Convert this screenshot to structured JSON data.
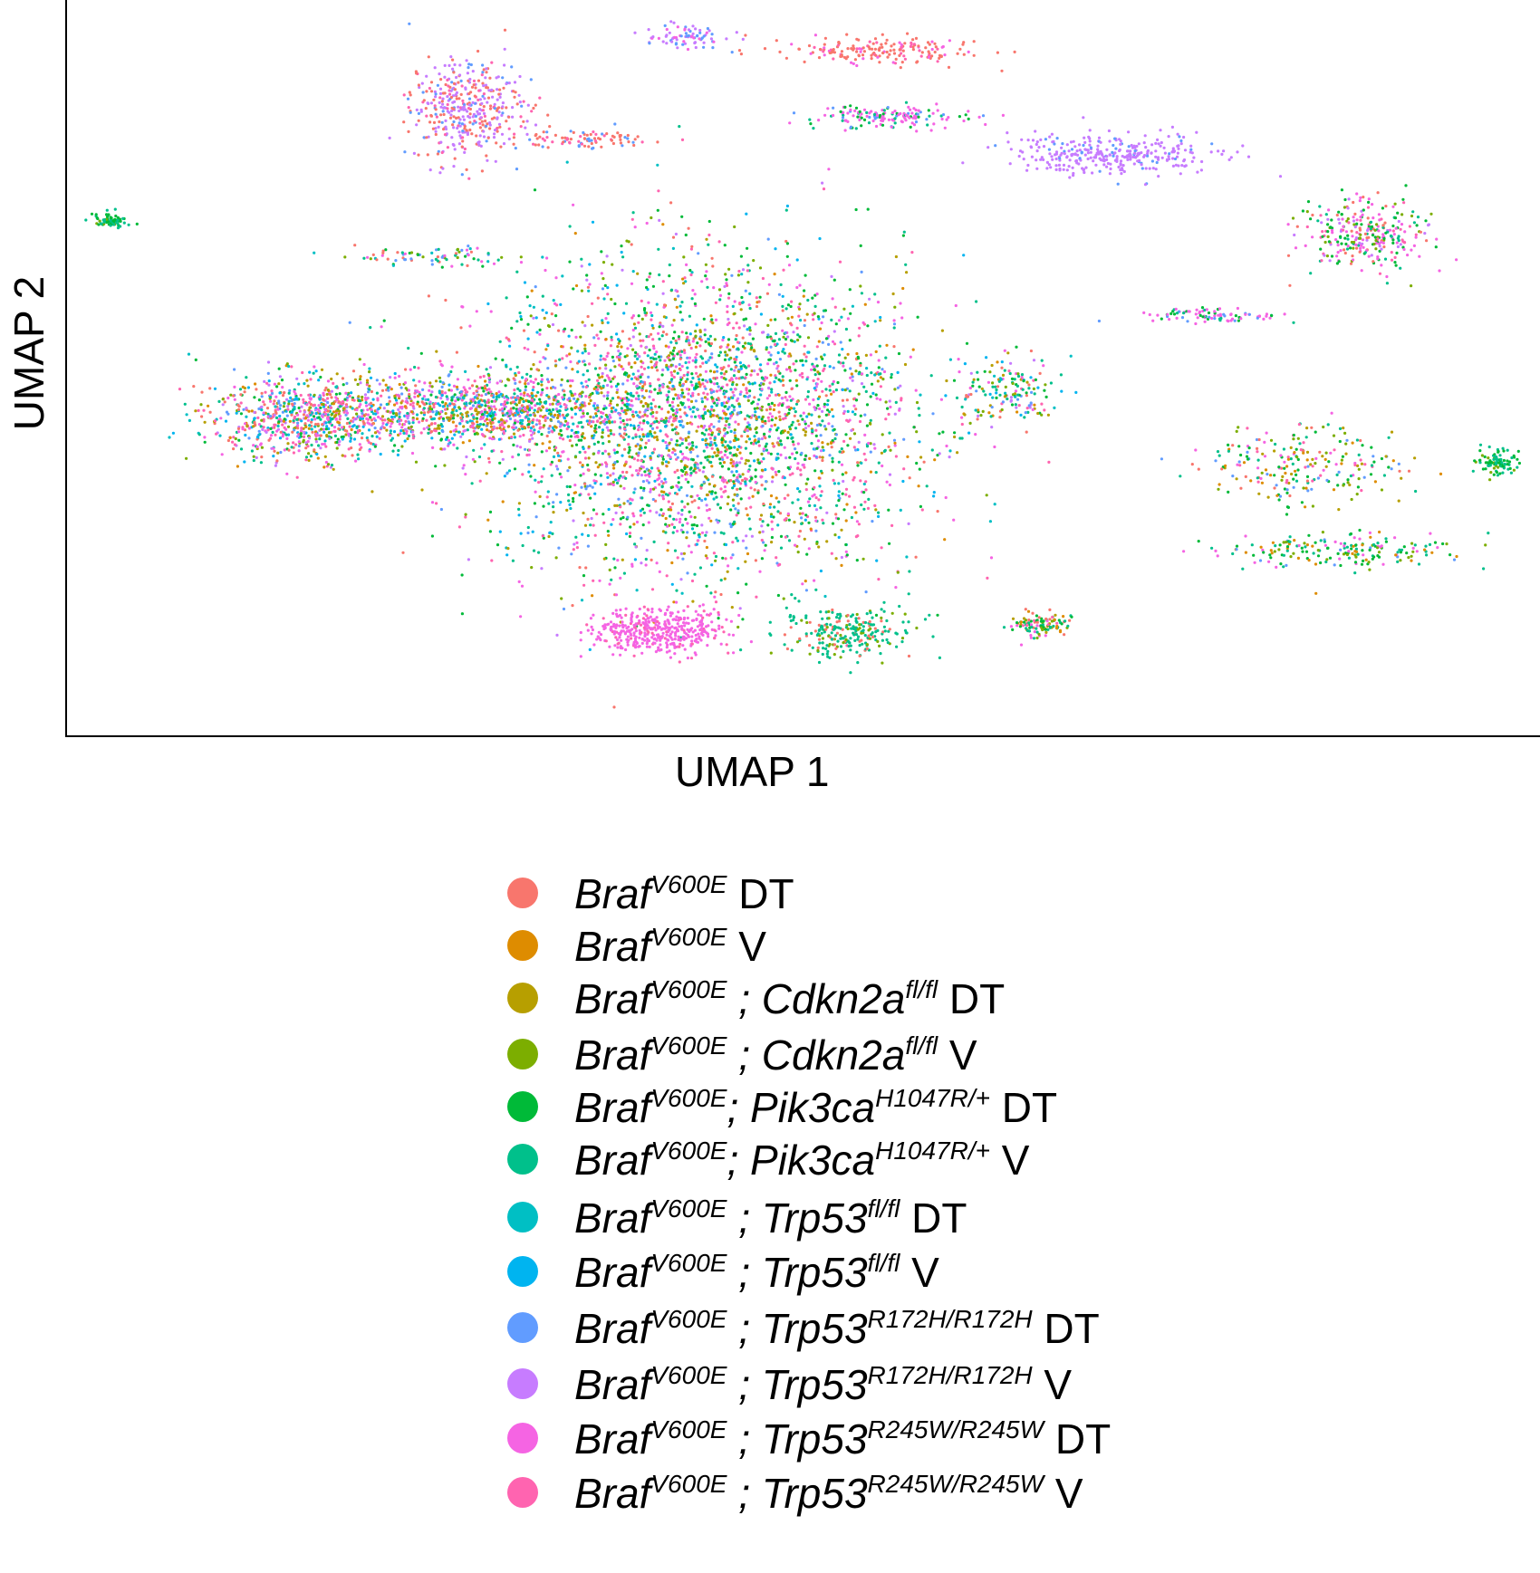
{
  "chart_data": {
    "type": "scatter",
    "title": "",
    "xlabel": "UMAP 1",
    "ylabel": "UMAP 2",
    "xlim": [
      0,
      100
    ],
    "ylim": [
      0,
      100
    ],
    "grid": false,
    "legend_position": "bottom",
    "series": [
      {
        "name": "BrafV600E DT",
        "color": "#F8766D",
        "parts": [
          {
            "t": "Braf",
            "i": true
          },
          {
            "t": "V600E",
            "sup": true
          },
          {
            "t": " DT"
          }
        ]
      },
      {
        "name": "BrafV600E V",
        "color": "#DE8C00",
        "parts": [
          {
            "t": "Braf",
            "i": true
          },
          {
            "t": "V600E",
            "sup": true
          },
          {
            "t": " V"
          }
        ]
      },
      {
        "name": "BrafV600E ; Cdkn2afl/fl DT",
        "color": "#B79F00",
        "parts": [
          {
            "t": "Braf",
            "i": true
          },
          {
            "t": "V600E",
            "sup": true
          },
          {
            "t": " ; Cdkn2a",
            "i": true
          },
          {
            "t": "fl/fl",
            "sup": true
          },
          {
            "t": " DT"
          }
        ]
      },
      {
        "name": "BrafV600E ; Cdkn2afl/fl V",
        "color": "#7CAE00",
        "parts": [
          {
            "t": "Braf",
            "i": true
          },
          {
            "t": "V600E",
            "sup": true
          },
          {
            "t": " ; Cdkn2a",
            "i": true
          },
          {
            "t": "fl/fl",
            "sup": true
          },
          {
            "t": " V"
          }
        ]
      },
      {
        "name": "BrafV600E; Pik3caH1047R/+ DT",
        "color": "#00BA38",
        "parts": [
          {
            "t": "Braf",
            "i": true
          },
          {
            "t": "V600E",
            "sup": true
          },
          {
            "t": "; Pik3ca",
            "i": true
          },
          {
            "t": "H1047R/+",
            "sup": true
          },
          {
            "t": " DT"
          }
        ]
      },
      {
        "name": "BrafV600E; Pik3caH1047R/+ V",
        "color": "#00C08B",
        "parts": [
          {
            "t": "Braf",
            "i": true
          },
          {
            "t": "V600E",
            "sup": true
          },
          {
            "t": "; Pik3ca",
            "i": true
          },
          {
            "t": "H1047R/+",
            "sup": true
          },
          {
            "t": " V"
          }
        ]
      },
      {
        "name": "BrafV600E ; Trp53fl/fl DT",
        "color": "#00BFC4",
        "parts": [
          {
            "t": "Braf",
            "i": true
          },
          {
            "t": "V600E",
            "sup": true
          },
          {
            "t": " ; Trp53",
            "i": true
          },
          {
            "t": "fl/fl",
            "sup": true
          },
          {
            "t": " DT"
          }
        ]
      },
      {
        "name": "BrafV600E ; Trp53fl/fl V",
        "color": "#00B4F0",
        "parts": [
          {
            "t": "Braf",
            "i": true
          },
          {
            "t": "V600E",
            "sup": true
          },
          {
            "t": " ; Trp53",
            "i": true
          },
          {
            "t": "fl/fl",
            "sup": true
          },
          {
            "t": " V"
          }
        ]
      },
      {
        "name": "BrafV600E ; Trp53R172H/R172H DT",
        "color": "#619CFF",
        "parts": [
          {
            "t": "Braf",
            "i": true
          },
          {
            "t": "V600E",
            "sup": true
          },
          {
            "t": " ; Trp53",
            "i": true
          },
          {
            "t": "R172H/R172H",
            "sup": true
          },
          {
            "t": " DT"
          }
        ]
      },
      {
        "name": "BrafV600E ; Trp53R172H/R172H V",
        "color": "#C77CFF",
        "parts": [
          {
            "t": "Braf",
            "i": true
          },
          {
            "t": "V600E",
            "sup": true
          },
          {
            "t": " ; Trp53",
            "i": true
          },
          {
            "t": "R172H/R172H",
            "sup": true
          },
          {
            "t": " V"
          }
        ]
      },
      {
        "name": "BrafV600E ; Trp53R245W/R245W DT",
        "color": "#F564E3",
        "parts": [
          {
            "t": "Braf",
            "i": true
          },
          {
            "t": "V600E",
            "sup": true
          },
          {
            "t": " ; Trp53",
            "i": true
          },
          {
            "t": "R245W/R245W",
            "sup": true
          },
          {
            "t": " DT"
          }
        ]
      },
      {
        "name": "BrafV600E ; Trp53R245W/R245W V",
        "color": "#FF64B0",
        "parts": [
          {
            "t": "Braf",
            "i": true
          },
          {
            "t": "V600E",
            "sup": true
          },
          {
            "t": " ; Trp53",
            "i": true
          },
          {
            "t": "R245W/R245W",
            "sup": true
          },
          {
            "t": " V"
          }
        ]
      }
    ],
    "clusters": [
      {
        "cx": 43,
        "cy": 43,
        "rx": 13,
        "ry": 19,
        "n": 3200,
        "w": [
          1,
          1,
          1,
          1,
          2,
          2,
          1,
          1,
          1,
          1,
          2,
          2
        ]
      },
      {
        "cx": 28,
        "cy": 44,
        "rx": 10,
        "ry": 4.5,
        "n": 1100,
        "w": [
          1,
          1,
          1,
          1,
          1,
          1,
          1,
          1,
          1,
          1,
          2,
          2
        ]
      },
      {
        "cx": 16,
        "cy": 43,
        "rx": 6,
        "ry": 5,
        "n": 700,
        "w": [
          2,
          1,
          1,
          1,
          1,
          1,
          1,
          1,
          1,
          1,
          2,
          2
        ]
      },
      {
        "cx": 40,
        "cy": 14,
        "rx": 4,
        "ry": 3,
        "n": 420,
        "w": [
          0,
          0,
          0,
          0,
          0,
          0,
          0,
          0,
          0,
          0,
          6,
          1
        ]
      },
      {
        "cx": 53,
        "cy": 14,
        "rx": 4,
        "ry": 3,
        "n": 260,
        "w": [
          1,
          0,
          0,
          1,
          0,
          4,
          0,
          0,
          0,
          0,
          0,
          0
        ]
      },
      {
        "cx": 27,
        "cy": 85,
        "rx": 3.5,
        "ry": 6,
        "n": 420,
        "w": [
          3,
          0,
          0,
          0,
          0,
          0,
          0,
          0,
          1,
          4,
          0,
          1
        ]
      },
      {
        "cx": 71,
        "cy": 79,
        "rx": 6.5,
        "ry": 2.4,
        "n": 330,
        "w": [
          0,
          0,
          0,
          0,
          0,
          0,
          0,
          0,
          1,
          8,
          0,
          0
        ]
      },
      {
        "cx": 88,
        "cy": 68,
        "rx": 4,
        "ry": 4.5,
        "n": 300,
        "w": [
          1,
          0,
          0,
          1,
          2,
          1,
          0,
          0,
          0,
          1,
          3,
          1
        ]
      },
      {
        "cx": 55,
        "cy": 93,
        "rx": 6,
        "ry": 1.6,
        "n": 180,
        "w": [
          4,
          0,
          0,
          0,
          0,
          0,
          0,
          0,
          0,
          0,
          1,
          1
        ]
      },
      {
        "cx": 56,
        "cy": 84,
        "rx": 5,
        "ry": 1.5,
        "n": 150,
        "w": [
          0,
          0,
          0,
          0,
          1,
          1,
          0,
          0,
          1,
          0,
          5,
          0
        ]
      },
      {
        "cx": 84,
        "cy": 37,
        "rx": 6,
        "ry": 5,
        "n": 230,
        "w": [
          1,
          1,
          1,
          1,
          2,
          1,
          0,
          0,
          1,
          0,
          1,
          1
        ]
      },
      {
        "cx": 87,
        "cy": 25,
        "rx": 7,
        "ry": 2.2,
        "n": 190,
        "w": [
          0,
          1,
          0,
          1,
          3,
          2,
          0,
          0,
          1,
          0,
          1,
          0
        ]
      },
      {
        "cx": 97,
        "cy": 37,
        "rx": 1.4,
        "ry": 1.4,
        "n": 90,
        "w": [
          0,
          0,
          0,
          1,
          3,
          2,
          0,
          0,
          0,
          0,
          0,
          0
        ]
      },
      {
        "cx": 64,
        "cy": 47,
        "rx": 3,
        "ry": 4,
        "n": 160,
        "w": [
          1,
          1,
          1,
          1,
          2,
          2,
          1,
          1,
          1,
          1,
          1,
          1
        ]
      },
      {
        "cx": 3,
        "cy": 70,
        "rx": 1.2,
        "ry": 1,
        "n": 70,
        "w": [
          0,
          0,
          0,
          1,
          3,
          2,
          0,
          0,
          0,
          0,
          0,
          0
        ]
      },
      {
        "cx": 25,
        "cy": 65,
        "rx": 5,
        "ry": 1.2,
        "n": 80,
        "w": [
          1,
          0,
          0,
          1,
          1,
          1,
          1,
          0,
          1,
          0,
          1,
          0
        ]
      },
      {
        "cx": 35,
        "cy": 81,
        "rx": 4.5,
        "ry": 1,
        "n": 90,
        "w": [
          3,
          0,
          0,
          0,
          0,
          0,
          0,
          0,
          1,
          0,
          0,
          1
        ]
      },
      {
        "cx": 42,
        "cy": 95,
        "rx": 2.5,
        "ry": 1.5,
        "n": 80,
        "w": [
          0,
          0,
          0,
          0,
          0,
          0,
          0,
          0,
          2,
          2,
          1,
          0
        ]
      },
      {
        "cx": 66,
        "cy": 15,
        "rx": 2,
        "ry": 1.5,
        "n": 110,
        "w": [
          1,
          1,
          1,
          1,
          2,
          2,
          0,
          0,
          0,
          0,
          1,
          1
        ]
      },
      {
        "cx": 78,
        "cy": 57,
        "rx": 4,
        "ry": 1,
        "n": 90,
        "w": [
          0,
          0,
          0,
          0,
          1,
          1,
          0,
          0,
          1,
          0,
          3,
          0
        ]
      }
    ]
  }
}
